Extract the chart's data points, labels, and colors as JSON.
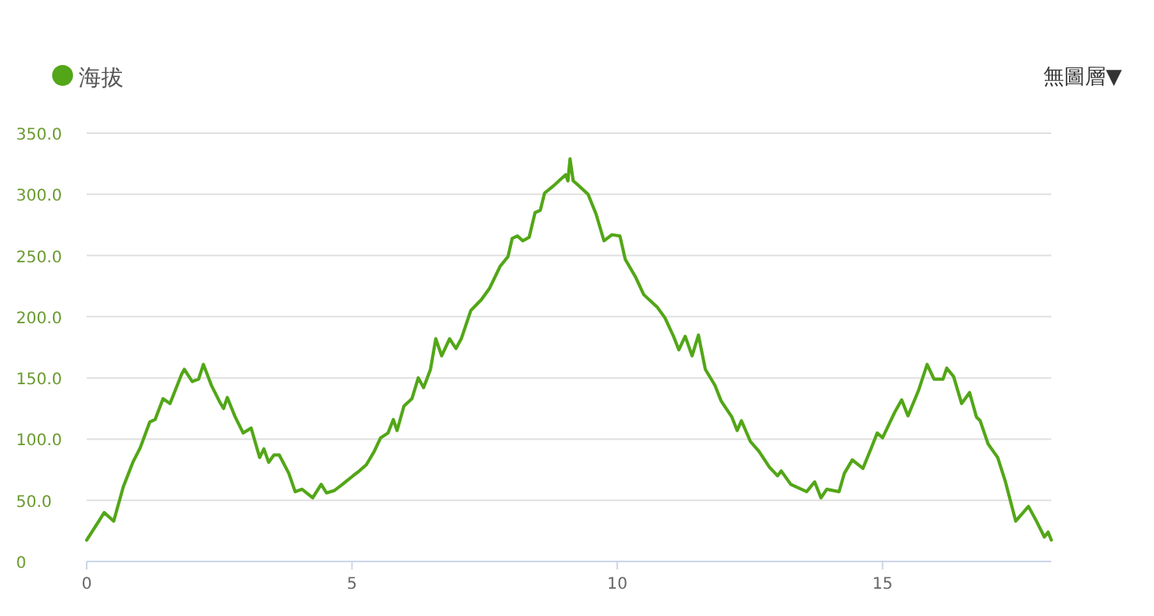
{
  "chart_data": {
    "type": "line",
    "legend": "top left",
    "grid": "y",
    "marker": "none",
    "annotations": [
      "無圖層▼"
    ],
    "xlim": [
      0,
      18.18
    ],
    "xticks": [
      0,
      5,
      10,
      15
    ],
    "ylim": [
      0,
      350
    ],
    "yticks": [
      0,
      {
        "value": 50,
        "label": "50.0"
      },
      {
        "value": 100,
        "label": "100.0"
      },
      {
        "value": 150,
        "label": "150.0"
      },
      {
        "value": 200,
        "label": "200.0"
      },
      {
        "value": 250,
        "label": "250.0"
      },
      {
        "value": 300,
        "label": "300.0"
      },
      {
        "value": 350,
        "label": "350.0"
      }
    ],
    "series": [
      {
        "name": "海拔",
        "color": "#52a617",
        "x": [
          0,
          0.23,
          0.33,
          0.43,
          0.51,
          0.69,
          0.87,
          1.01,
          1.19,
          1.29,
          1.44,
          1.57,
          1.79,
          1.84,
          1.99,
          2.11,
          2.2,
          2.35,
          2.5,
          2.58,
          2.65,
          2.8,
          2.95,
          3.1,
          3.26,
          3.34,
          3.43,
          3.53,
          3.63,
          3.81,
          3.93,
          4.06,
          4.26,
          4.42,
          4.52,
          4.67,
          4.82,
          5.02,
          5.14,
          5.27,
          5.42,
          5.54,
          5.68,
          5.78,
          5.85,
          5.98,
          6.13,
          6.25,
          6.35,
          6.48,
          6.58,
          6.69,
          6.84,
          6.96,
          7.06,
          7.24,
          7.44,
          7.59,
          7.79,
          7.94,
          8.02,
          8.12,
          8.22,
          8.34,
          8.45,
          8.55,
          8.63,
          8.8,
          8.95,
          9.03,
          9.07,
          9.11,
          9.17,
          9.25,
          9.45,
          9.6,
          9.75,
          9.9,
          10.05,
          10.15,
          10.35,
          10.5,
          10.75,
          10.9,
          11.06,
          11.16,
          11.28,
          11.41,
          11.53,
          11.66,
          11.84,
          11.96,
          12.16,
          12.26,
          12.34,
          12.51,
          12.67,
          12.87,
          13.02,
          13.09,
          13.27,
          13.57,
          13.72,
          13.84,
          13.95,
          14.18,
          14.28,
          14.43,
          14.63,
          14.78,
          14.9,
          15.0,
          15.23,
          15.36,
          15.48,
          15.68,
          15.84,
          15.97,
          16.14,
          16.21,
          16.34,
          16.49,
          16.64,
          16.77,
          16.84,
          16.99,
          17.17,
          17.31,
          17.51,
          17.75,
          17.9,
          18.05,
          18.12,
          18.18
        ],
        "values": [
          17.5,
          33,
          40,
          36,
          33,
          61,
          81,
          93,
          114,
          116,
          133,
          129,
          153,
          157,
          147,
          149,
          161,
          144,
          131,
          125,
          134,
          118,
          105,
          109,
          85,
          92,
          81,
          87,
          87,
          72,
          57,
          59,
          52,
          63,
          56,
          58,
          63,
          70,
          74,
          79,
          90,
          101,
          105,
          116,
          107,
          127,
          133,
          150,
          142,
          157,
          182,
          168,
          182,
          174,
          182,
          205,
          214,
          223,
          241,
          249,
          264,
          266,
          262,
          265,
          285,
          287,
          301,
          307,
          313,
          316,
          311,
          329,
          311,
          308,
          300,
          284,
          262,
          267,
          266,
          247,
          232,
          218,
          208,
          199,
          184,
          173,
          184,
          168,
          185,
          157,
          144,
          131,
          118,
          107,
          115,
          98,
          90,
          77,
          70,
          74,
          63,
          57,
          65,
          52,
          59,
          57,
          72,
          83,
          76,
          92,
          105,
          101,
          122,
          132,
          119,
          140,
          161,
          149,
          149,
          158,
          151,
          129,
          138,
          118,
          115,
          96,
          85,
          66,
          33,
          45,
          33,
          20,
          24,
          17.5
        ]
      }
    ]
  }
}
